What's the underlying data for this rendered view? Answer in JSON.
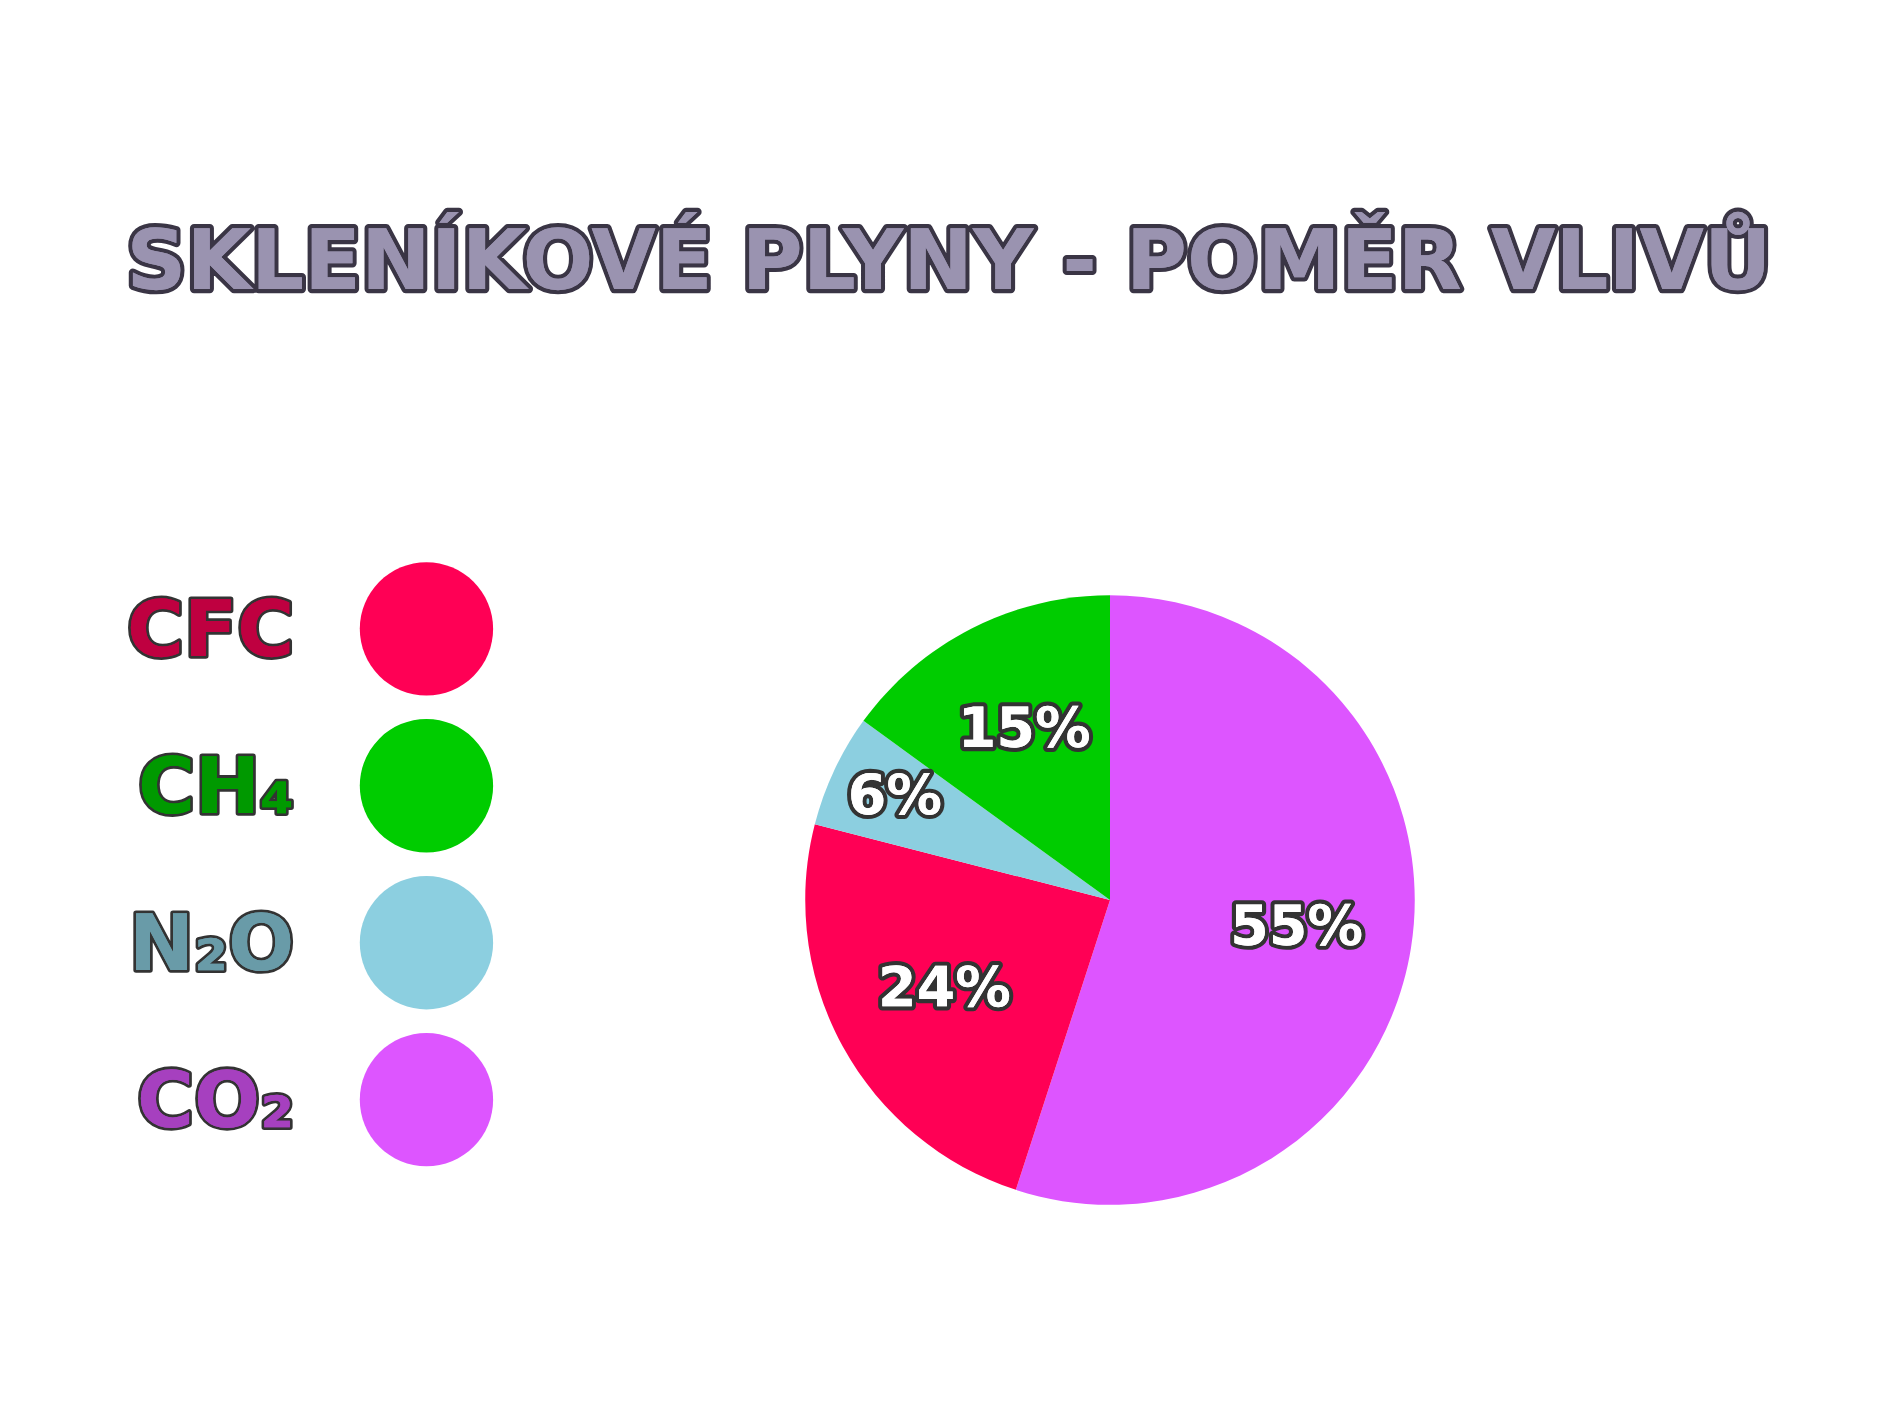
{
  "chart_data": {
    "type": "pie",
    "title": "SKLENÍKOVÉ PLYNY - POMĚR VLIVŮ",
    "categories": [
      "CFC",
      "CH₄",
      "N₂O",
      "CO₂"
    ],
    "values": [
      24,
      15,
      6,
      55
    ],
    "colors": [
      "#ff0055",
      "#00cc00",
      "#8ccfe0",
      "#dd55ff"
    ],
    "value_labels": [
      "24%",
      "15%",
      "6%",
      "55%"
    ],
    "legend": "left"
  }
}
